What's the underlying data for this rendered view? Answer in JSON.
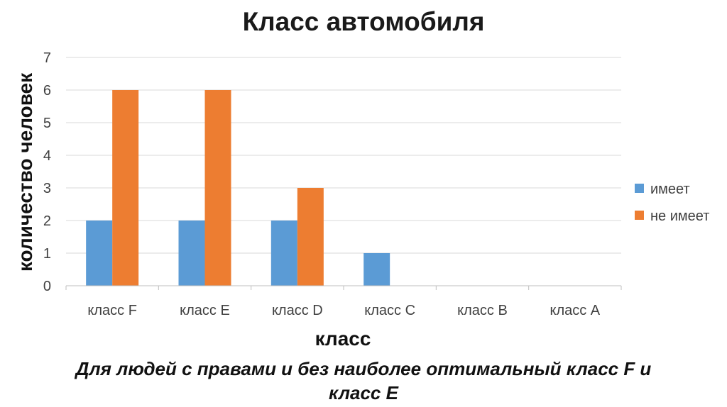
{
  "chart_data": {
    "type": "bar",
    "title": "Класс автомобиля",
    "xlabel": "класс",
    "ylabel": "количество человек",
    "categories": [
      "класс F",
      "класс E",
      "класс D",
      "класс C",
      "класс B",
      "класс A"
    ],
    "series": [
      {
        "name": "имеет",
        "color": "#5b9bd5",
        "values": [
          2,
          2,
          2,
          1,
          0,
          0
        ]
      },
      {
        "name": "не имеет",
        "color": "#ed7d31",
        "values": [
          6,
          6,
          3,
          0,
          0,
          0
        ]
      }
    ],
    "ylim": [
      0,
      7
    ],
    "yticks": [
      0,
      1,
      2,
      3,
      4,
      5,
      6,
      7
    ],
    "grid": true,
    "legend_position": "right"
  },
  "caption": {
    "line1": "Для людей с правами и без наиболее оптимальный класс  F  и",
    "line2": "класс Е"
  }
}
